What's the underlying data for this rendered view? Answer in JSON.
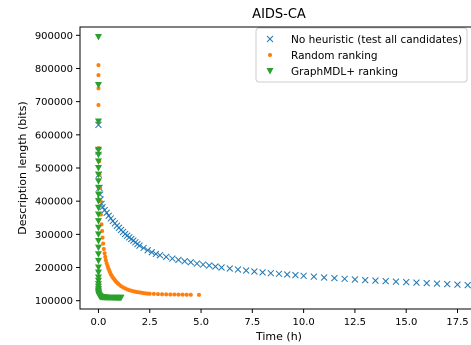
{
  "chart_data": {
    "type": "scatter",
    "title": "AIDS-CA",
    "xlabel": "Time (h)",
    "ylabel": "Description length (bits)",
    "xlim": [
      -0.9,
      18.5
    ],
    "ylim": [
      75000,
      925000
    ],
    "x_ticks": [
      0.0,
      2.5,
      5.0,
      7.5,
      10.0,
      12.5,
      15.0,
      17.5
    ],
    "x_tick_labels": [
      "0.0",
      "2.5",
      "5.0",
      "7.5",
      "10.0",
      "12.5",
      "15.0",
      "17.5"
    ],
    "y_ticks": [
      100000,
      200000,
      300000,
      400000,
      500000,
      600000,
      700000,
      800000,
      900000
    ],
    "y_tick_labels": [
      "100000",
      "200000",
      "300000",
      "400000",
      "500000",
      "600000",
      "700000",
      "800000",
      "900000"
    ],
    "grid": false,
    "legend_position": "top-right",
    "series": [
      {
        "name": "No heuristic (test all candidates)",
        "marker": "x",
        "color": "#1f77b4",
        "x": [
          0.0,
          0.0,
          0.02,
          0.05,
          0.08,
          0.1,
          0.15,
          0.2,
          0.3,
          0.4,
          0.5,
          0.6,
          0.7,
          0.8,
          0.9,
          1.0,
          1.1,
          1.2,
          1.3,
          1.4,
          1.5,
          1.6,
          1.7,
          1.8,
          1.9,
          2.0,
          2.2,
          2.4,
          2.6,
          2.8,
          3.0,
          3.3,
          3.6,
          3.9,
          4.2,
          4.5,
          4.8,
          5.1,
          5.4,
          5.7,
          6.0,
          6.4,
          6.8,
          7.2,
          7.6,
          8.0,
          8.4,
          8.8,
          9.2,
          9.6,
          10.0,
          10.5,
          11.0,
          11.5,
          12.0,
          12.5,
          13.0,
          13.5,
          14.0,
          14.5,
          15.0,
          15.5,
          16.0,
          16.5,
          17.0,
          17.5,
          18.0
        ],
        "y": [
          630000,
          550000,
          480000,
          440000,
          420000,
          405000,
          392000,
          382000,
          373000,
          365000,
          356000,
          348000,
          340000,
          333000,
          326000,
          320000,
          313000,
          307000,
          301000,
          296000,
          291000,
          286000,
          281000,
          276000,
          271000,
          266000,
          259000,
          252000,
          246000,
          241000,
          237000,
          232000,
          227000,
          223000,
          219000,
          216000,
          212000,
          209000,
          206000,
          203000,
          200000,
          197000,
          194000,
          191000,
          188000,
          185500,
          183000,
          181000,
          179000,
          177000,
          175000,
          172500,
          170000,
          168000,
          166000,
          164000,
          162000,
          160500,
          159000,
          157500,
          156000,
          154500,
          153000,
          151500,
          150000,
          148500,
          147000
        ]
      },
      {
        "name": "Random ranking",
        "marker": "o",
        "color": "#ff7f0e",
        "x": [
          0.0,
          0.0,
          0.0,
          0.0,
          0.0,
          0.02,
          0.03,
          0.05,
          0.08,
          0.1,
          0.12,
          0.15,
          0.18,
          0.2,
          0.23,
          0.26,
          0.3,
          0.33,
          0.36,
          0.4,
          0.44,
          0.48,
          0.52,
          0.56,
          0.6,
          0.65,
          0.7,
          0.75,
          0.8,
          0.85,
          0.9,
          0.95,
          1.0,
          1.1,
          1.2,
          1.3,
          1.4,
          1.5,
          1.6,
          1.7,
          1.8,
          1.9,
          2.0,
          2.1,
          2.2,
          2.3,
          2.4,
          2.5,
          2.7,
          2.9,
          3.1,
          3.3,
          3.5,
          3.7,
          3.9,
          4.1,
          4.3,
          4.5,
          4.9
        ],
        "y": [
          810000,
          780000,
          740000,
          690000,
          640000,
          560000,
          520000,
          480000,
          440000,
          400000,
          360000,
          330000,
          310000,
          290000,
          272000,
          256000,
          243000,
          232000,
          222000,
          213000,
          205000,
          198000,
          192000,
          186000,
          180000,
          175000,
          170000,
          166000,
          162000,
          158000,
          155000,
          152000,
          149000,
          144000,
          140000,
          137000,
          134000,
          132000,
          130000,
          128500,
          127000,
          126000,
          125000,
          124000,
          123000,
          122000,
          121500,
          121000,
          120500,
          120000,
          119500,
          119000,
          118800,
          118600,
          118400,
          118200,
          118000,
          117800,
          117500
        ]
      },
      {
        "name": "GraphMDL+ ranking",
        "marker": "v",
        "color": "#2ca02c",
        "x": [
          0.0,
          0.0,
          0.0,
          0.0,
          0.0,
          0.0,
          0.0,
          0.0,
          0.0,
          0.0,
          0.0,
          0.0,
          0.0,
          0.0,
          0.0,
          0.0,
          0.0,
          0.0,
          0.0,
          0.0,
          0.0,
          0.0,
          0.0,
          0.0,
          0.0,
          0.0,
          0.0,
          0.0,
          0.0,
          0.0,
          0.01,
          0.02,
          0.03,
          0.04,
          0.05,
          0.06,
          0.08,
          0.1,
          0.12,
          0.15,
          0.2,
          0.25,
          0.3,
          0.35,
          0.4,
          0.45,
          0.5,
          0.55,
          0.6,
          0.65,
          0.7,
          0.75,
          0.8,
          0.85,
          0.9,
          0.95,
          1.0,
          1.05,
          1.1
        ],
        "y": [
          895000,
          750000,
          640000,
          555000,
          540000,
          520000,
          500000,
          480000,
          460000,
          440000,
          420000,
          400000,
          380000,
          360000,
          340000,
          320000,
          300000,
          280000,
          260000,
          240000,
          220000,
          200000,
          185000,
          170000,
          160000,
          150000,
          142000,
          135000,
          130000,
          126000,
          122000,
          119000,
          117000,
          115500,
          114500,
          113500,
          112500,
          112000,
          111500,
          111000,
          110500,
          110300,
          110100,
          110000,
          109900,
          109800,
          109700,
          109600,
          109500,
          109400,
          109300,
          109200,
          109100,
          109050,
          109000,
          108950,
          108900,
          108850,
          108800
        ]
      }
    ]
  }
}
